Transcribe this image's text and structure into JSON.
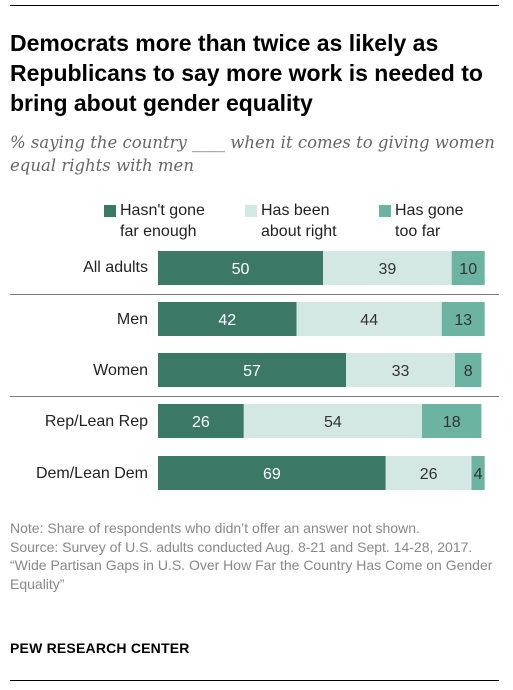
{
  "title": "Democrats more than twice as likely as Republicans to say more work is needed to bring about gender equality",
  "subtitle": "% saying the country ____ when it comes to giving women equal rights with men",
  "note_lines": [
    "Note: Share of respondents who didn’t offer an answer not shown.",
    "Source: Survey of U.S. adults conducted Aug. 8-21 and Sept. 14-28, 2017.",
    "“Wide Partisan Gaps in U.S. Over How Far the Country Has Come on Gender Equality”"
  ],
  "brand": "PEW RESEARCH CENTER",
  "colors": {
    "not_far_enough": "#3b7866",
    "about_right": "#d3e8e2",
    "too_far": "#6db3a2"
  },
  "chart_data": {
    "type": "bar",
    "orientation": "horizontal",
    "stacked": true,
    "categories": [
      "All adults",
      "Men",
      "Women",
      "Rep/Lean Rep",
      "Dem/Lean Dem"
    ],
    "series": [
      {
        "name": "Hasn't gone far enough",
        "legend_lines": [
          "Hasn't gone",
          "far enough"
        ],
        "values": [
          50,
          42,
          57,
          26,
          69
        ]
      },
      {
        "name": "Has been about right",
        "legend_lines": [
          "Has been",
          "about right"
        ],
        "values": [
          39,
          44,
          33,
          54,
          26
        ]
      },
      {
        "name": "Has gone too far",
        "legend_lines": [
          "Has gone",
          "too far"
        ],
        "values": [
          10,
          13,
          8,
          18,
          4
        ]
      }
    ],
    "xlim": [
      0,
      100
    ],
    "grid": false,
    "legend": "top"
  }
}
